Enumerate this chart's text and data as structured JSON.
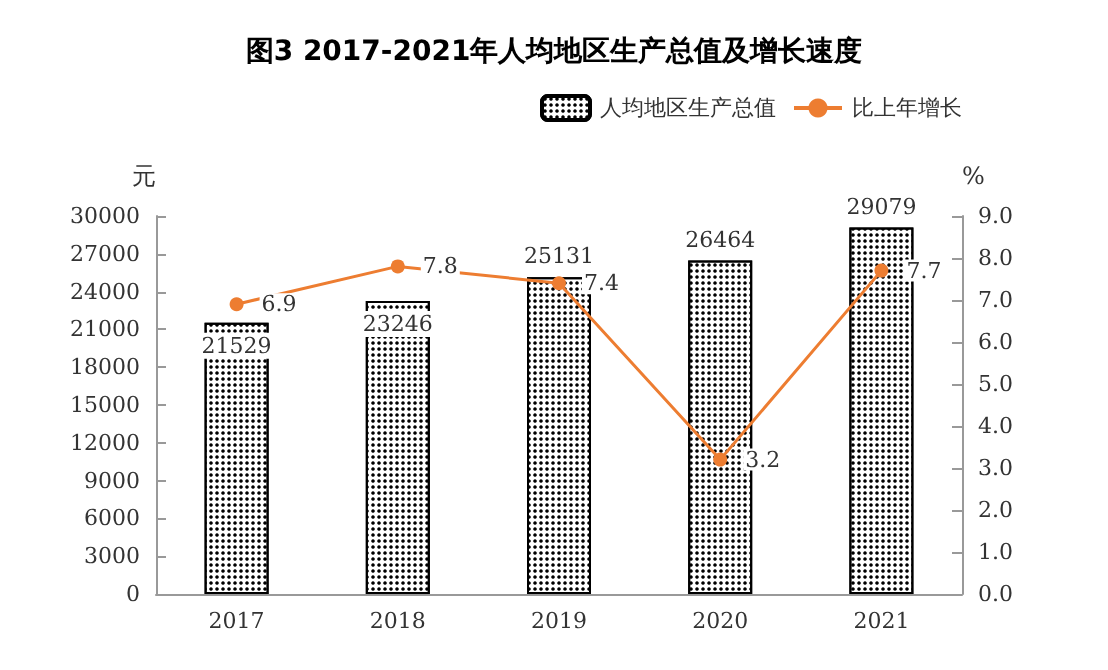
{
  "chart_data": {
    "type": "bar",
    "title": "图3 2017-2021年人均地区生产总值及增长速度",
    "ylabel": "元",
    "y2label": "%",
    "categories": [
      "2017",
      "2018",
      "2019",
      "2020",
      "2021"
    ],
    "series": [
      {
        "name": "人均地区生产总值",
        "color": "#ffffff",
        "values": [
          21529,
          23246,
          25131,
          26464,
          29079
        ]
      },
      {
        "name": "比上年增长",
        "type": "line",
        "axis": "y2",
        "color": "#ed7d31",
        "values": [
          6.9,
          7.8,
          7.4,
          3.2,
          7.7
        ]
      }
    ],
    "ylim": [
      0,
      30000
    ],
    "yticks": [
      0,
      3000,
      6000,
      9000,
      12000,
      15000,
      18000,
      21000,
      24000,
      27000,
      30000
    ],
    "y2lim": [
      0,
      9
    ],
    "y2ticks": [
      {
        "value": 0,
        "label": "0.0"
      },
      {
        "value": 1,
        "label": "1.0"
      },
      {
        "value": 2,
        "label": "2.0"
      },
      {
        "value": 3,
        "label": "3.0"
      },
      {
        "value": 4,
        "label": "4.0"
      },
      {
        "value": 5,
        "label": "5.0"
      },
      {
        "value": 6,
        "label": "6.0"
      },
      {
        "value": 7,
        "label": "7.0"
      },
      {
        "value": 8,
        "label": "8.0"
      },
      {
        "value": 9,
        "label": "9.0"
      }
    ],
    "data_labels": true,
    "legend": "top right",
    "grid": false,
    "marker": "circle"
  }
}
